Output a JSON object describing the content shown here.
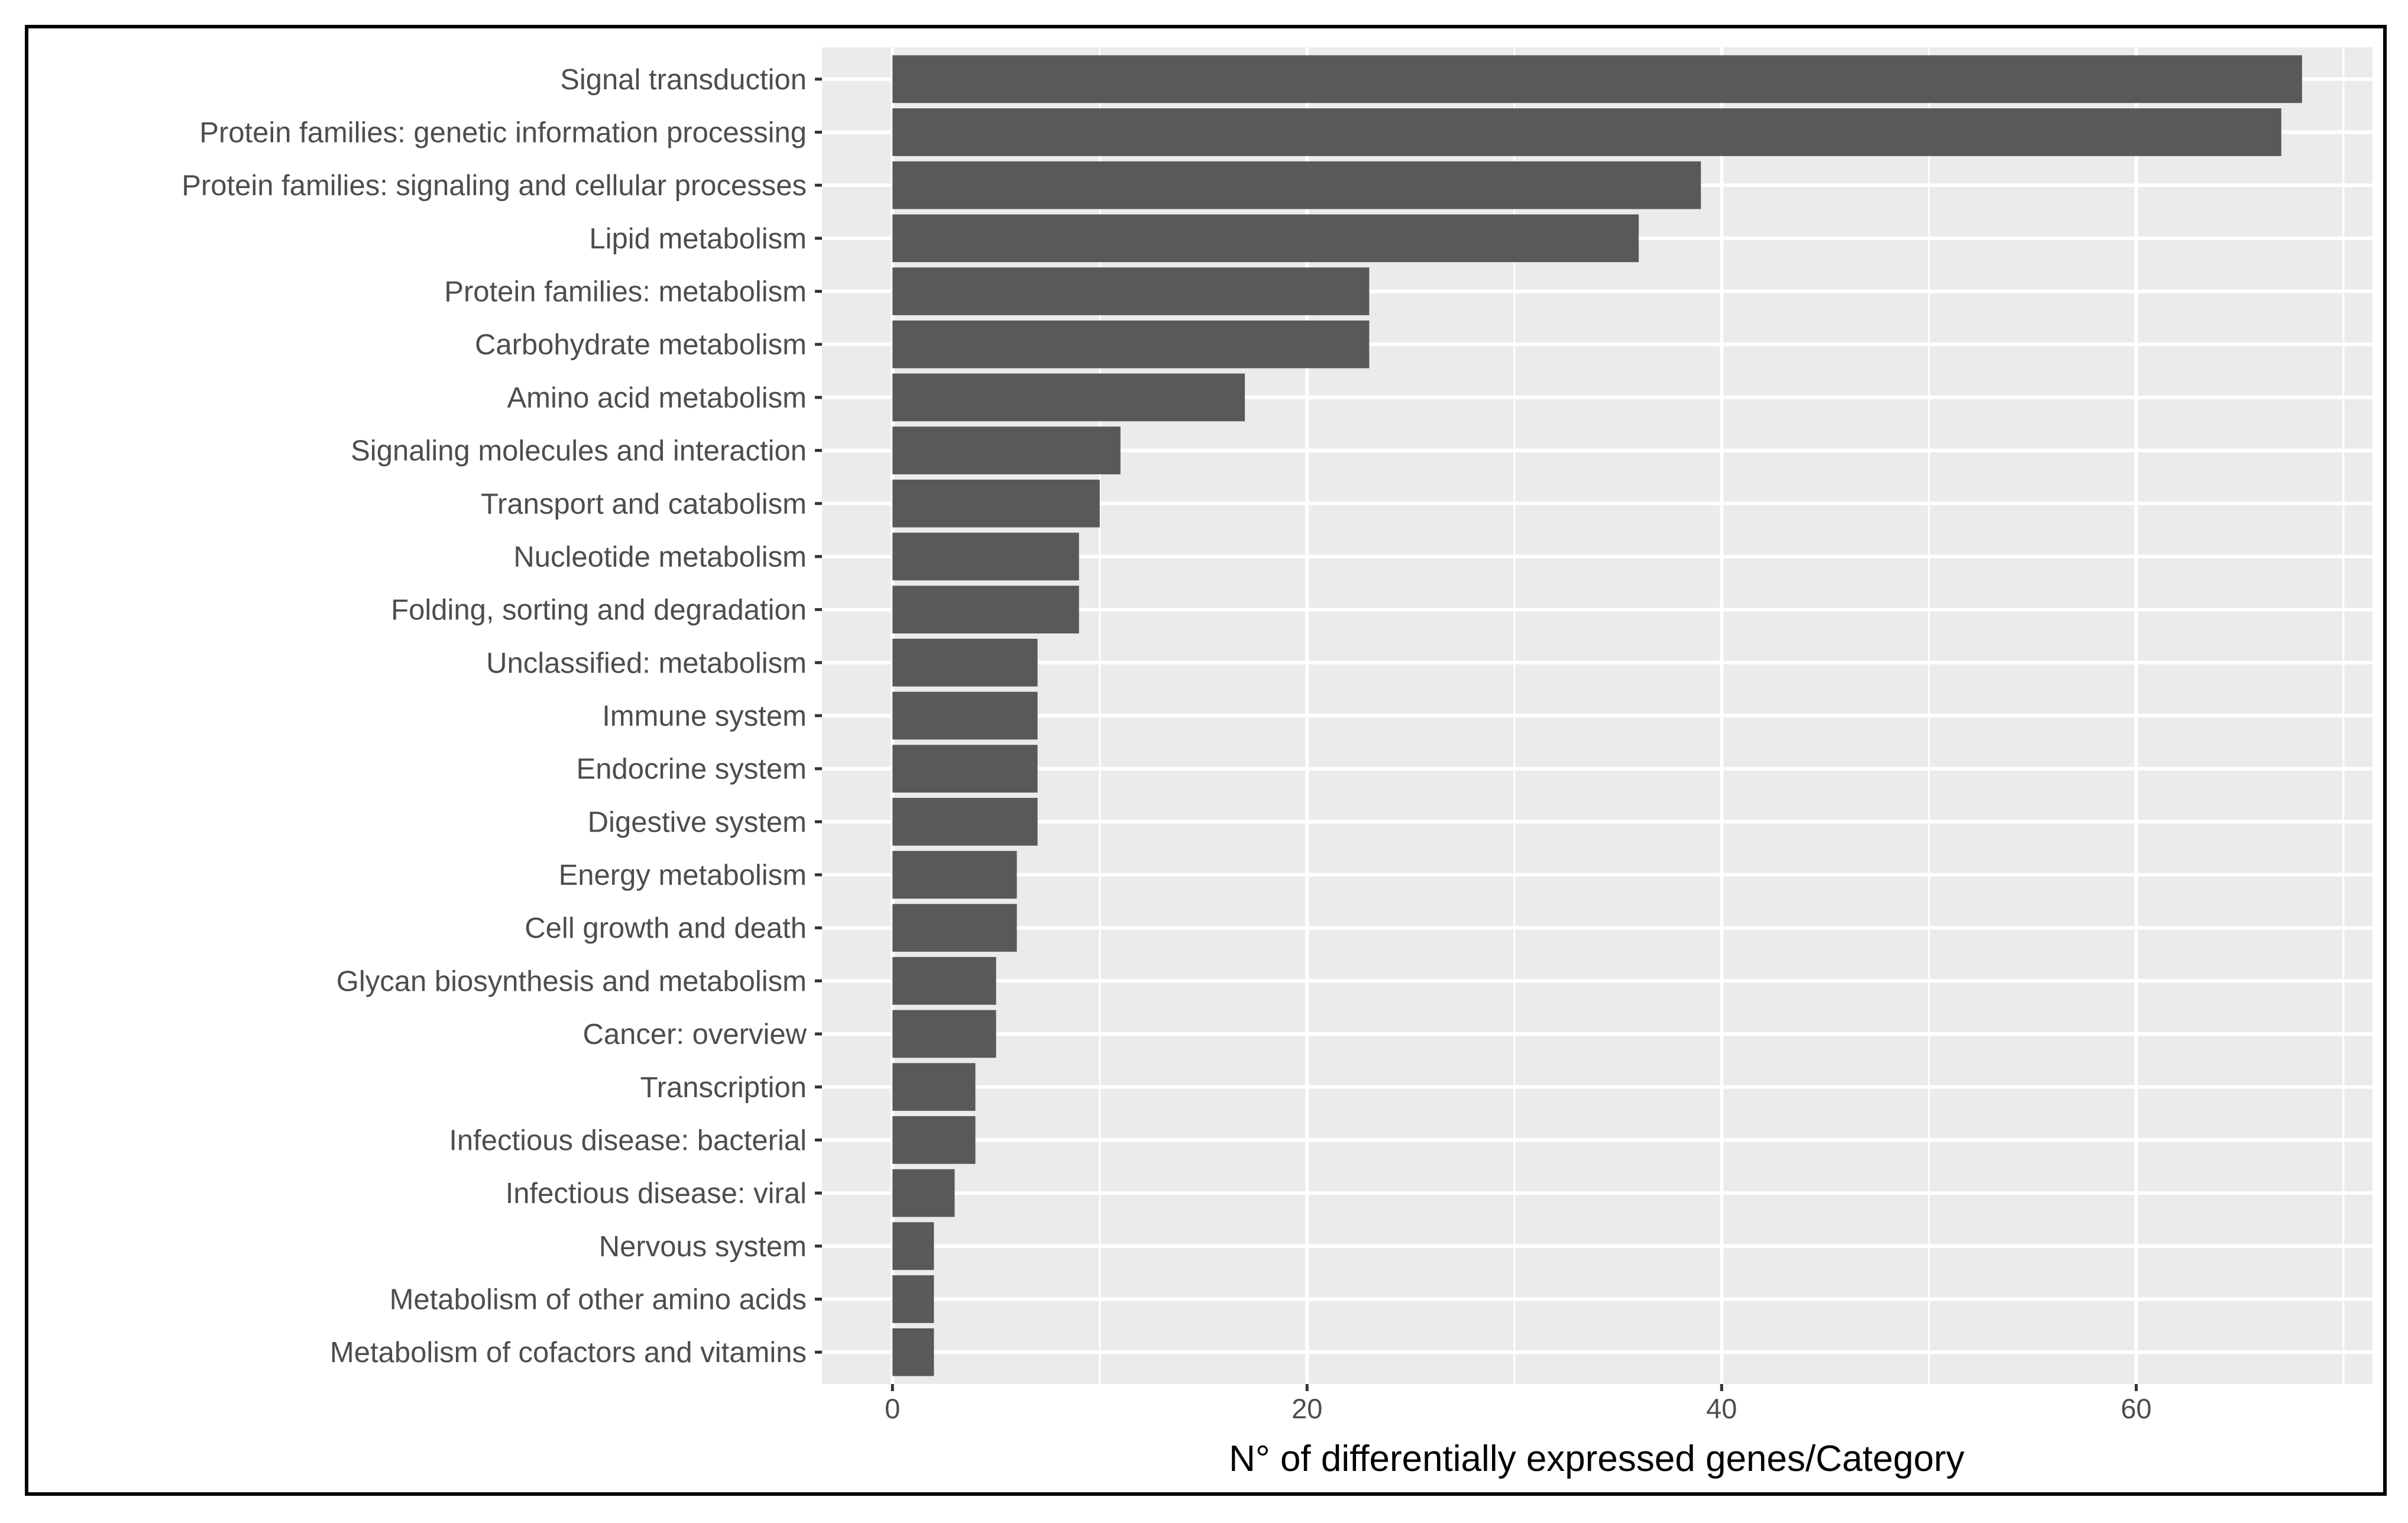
{
  "chart_data": {
    "type": "bar",
    "orientation": "horizontal",
    "xlabel": "N° of differentially expressed genes/Category",
    "ylabel": "",
    "xlim": [
      -3.4,
      71.4
    ],
    "xticks": [
      0,
      20,
      40,
      60
    ],
    "grid": true,
    "bar_color": "#595959",
    "panel_color": "#ebebeb",
    "grid_color": "#ffffff",
    "categories": [
      "Signal transduction",
      "Protein families: genetic information processing",
      "Protein families: signaling and cellular processes",
      "Lipid metabolism",
      "Protein families: metabolism",
      "Carbohydrate metabolism",
      "Amino acid metabolism",
      "Signaling molecules and interaction",
      "Transport and catabolism",
      "Nucleotide metabolism",
      "Folding, sorting and degradation",
      "Unclassified: metabolism",
      "Immune system",
      "Endocrine system",
      "Digestive system",
      "Energy metabolism",
      "Cell growth and death",
      "Glycan biosynthesis and metabolism",
      "Cancer: overview",
      "Transcription",
      "Infectious disease: bacterial",
      "Infectious disease: viral",
      "Nervous system",
      "Metabolism of other amino acids",
      "Metabolism of cofactors and vitamins"
    ],
    "values": [
      68,
      67,
      39,
      36,
      23,
      23,
      17,
      11,
      10,
      9,
      9,
      7,
      7,
      7,
      7,
      6,
      6,
      5,
      5,
      4,
      4,
      3,
      2,
      2,
      2
    ]
  }
}
